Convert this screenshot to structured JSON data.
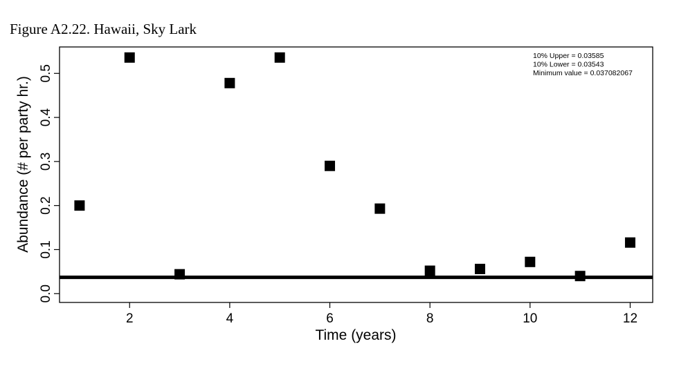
{
  "figure_title": "Figure A2.22. Hawaii, Sky Lark",
  "chart_data": {
    "type": "scatter",
    "xlabel": "Time (years)",
    "ylabel": "Abundance (# per party hr.)",
    "xlim": [
      0.6,
      12.45
    ],
    "ylim": [
      -0.02,
      0.56
    ],
    "xticks": [
      2,
      4,
      6,
      8,
      10,
      12
    ],
    "yticks": [
      0.0,
      0.1,
      0.2,
      0.3,
      0.4,
      0.5
    ],
    "ytick_labels": [
      "0.0",
      "0.1",
      "0.2",
      "0.3",
      "0.4",
      "0.5"
    ],
    "x": [
      1,
      2,
      3,
      4,
      5,
      6,
      7,
      8,
      9,
      10,
      11,
      12
    ],
    "y": [
      0.2,
      0.536,
      0.044,
      0.478,
      0.536,
      0.29,
      0.193,
      0.052,
      0.056,
      0.072,
      0.04,
      0.116
    ],
    "reference_line": {
      "y": 0.037082067
    },
    "annotations": [
      "10% Upper =  0.03585",
      "10% Lower =  0.03543",
      "Minimum value =  0.037082067"
    ],
    "marker_color": "#000000"
  }
}
